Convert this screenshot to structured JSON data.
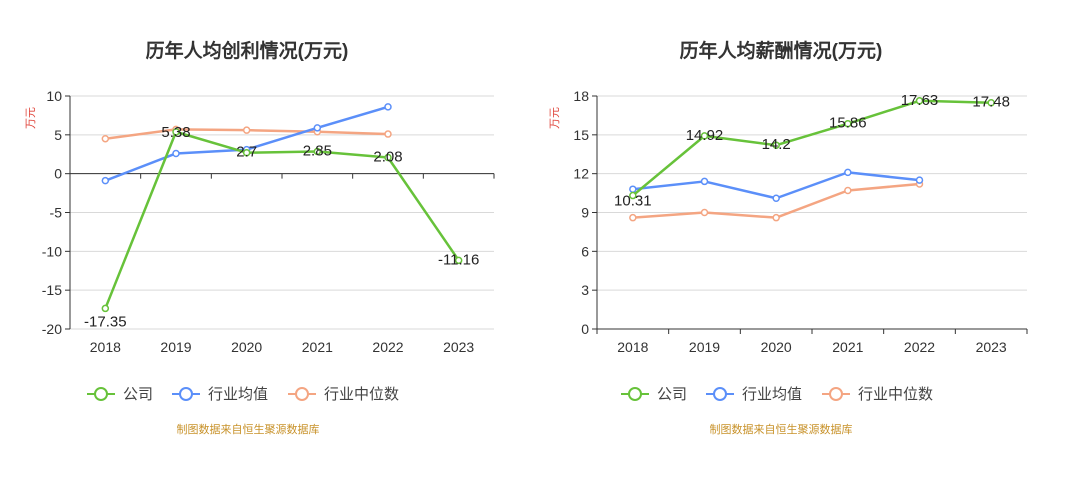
{
  "legend": {
    "company": "公司",
    "industry_avg": "行业均值",
    "industry_median": "行业中位数"
  },
  "colors": {
    "company": "#67c23a",
    "industry_avg": "#5b8ff9",
    "industry_median": "#f4a582"
  },
  "source": "制图数据来自恒生聚源数据库",
  "chart_data": [
    {
      "type": "line",
      "title": "历年人均创利情况(万元)",
      "ylabel": "万元",
      "categories": [
        "2018",
        "2019",
        "2020",
        "2021",
        "2022",
        "2023"
      ],
      "ylim": [
        -20,
        10
      ],
      "yticks": [
        -20,
        -15,
        -10,
        -5,
        0,
        5,
        10
      ],
      "series": [
        {
          "name": "公司",
          "key": "company",
          "values": [
            -17.35,
            5.38,
            2.7,
            2.85,
            2.08,
            -11.16
          ],
          "labels": [
            "-17.35",
            "5.38",
            "2.7",
            "2.85",
            "2.08",
            "-11.16"
          ]
        },
        {
          "name": "行业均值",
          "key": "industry_avg",
          "values": [
            -0.9,
            2.6,
            3.1,
            5.9,
            8.6,
            null
          ]
        },
        {
          "name": "行业中位数",
          "key": "industry_median",
          "values": [
            4.5,
            5.7,
            5.6,
            5.4,
            5.1,
            null
          ]
        }
      ]
    },
    {
      "type": "line",
      "title": "历年人均薪酬情况(万元)",
      "ylabel": "万元",
      "categories": [
        "2018",
        "2019",
        "2020",
        "2021",
        "2022",
        "2023"
      ],
      "ylim": [
        0,
        18
      ],
      "yticks": [
        0,
        3,
        6,
        9,
        12,
        15,
        18
      ],
      "series": [
        {
          "name": "公司",
          "key": "company",
          "values": [
            10.31,
            14.92,
            14.2,
            15.86,
            17.63,
            17.48
          ],
          "labels": [
            "10.31",
            "14.92",
            "14.2",
            "15.86",
            "17.63",
            "17.48"
          ]
        },
        {
          "name": "行业均值",
          "key": "industry_avg",
          "values": [
            10.8,
            11.4,
            10.1,
            12.1,
            11.5,
            null
          ]
        },
        {
          "name": "行业中位数",
          "key": "industry_median",
          "values": [
            8.6,
            9.0,
            8.6,
            10.7,
            11.2,
            null
          ]
        }
      ]
    }
  ]
}
